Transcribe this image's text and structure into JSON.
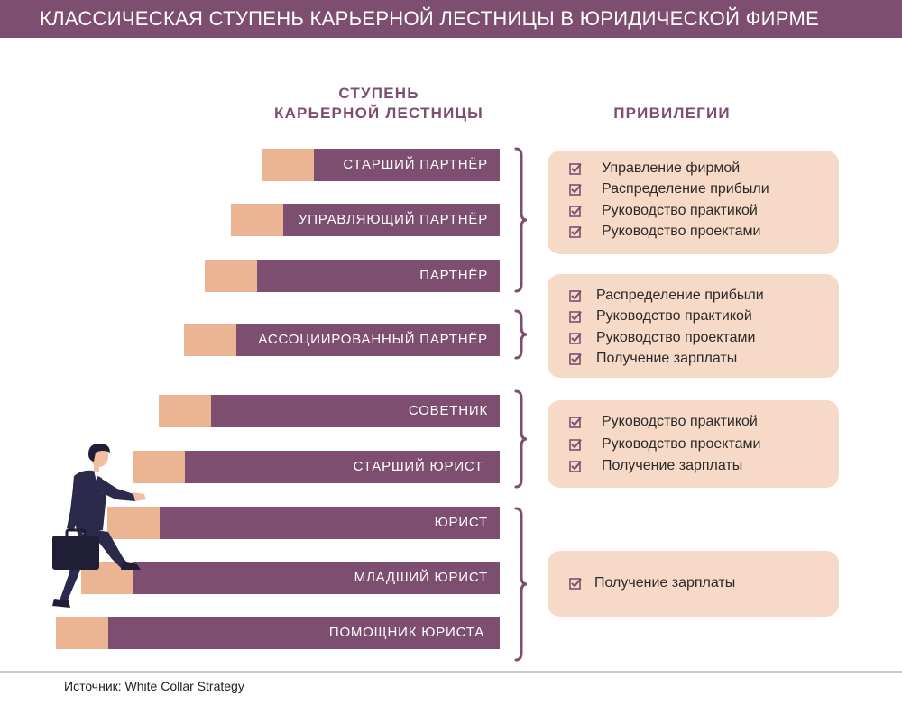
{
  "title": "КЛАССИЧЕСКАЯ СТУПЕНЬ КАРЬЕРНОЙ ЛЕСТНИЦЫ В ЮРИДИЧЕСКОЙ ФИРМЕ",
  "headers": {
    "steps_line1": "СТУПЕНЬ",
    "steps_line2": "КАРЬЕРНОЙ ЛЕСТНИЦЫ",
    "perks": "ПРИВИЛЕГИИ"
  },
  "steps": [
    "СТАРШИЙ ПАРТНЁР",
    "УПРАВЛЯЮЩИЙ ПАРТНЁР",
    "ПАРТНЁР",
    "АССОЦИИРОВАННЫЙ ПАРТНЁР",
    "СОВЕТНИК",
    "СТАРШИЙ ЮРИСТ",
    "ЮРИСТ",
    "МЛАДШИЙ ЮРИСТ",
    "ПОМОЩНИК ЮРИСТА"
  ],
  "perk_groups": [
    [
      "Управление фирмой",
      "Распределение прибыли",
      "Руководство практикой",
      "Руководство проектами"
    ],
    [
      "Распределение прибыли",
      "Руководство практикой",
      "Руководство проектами",
      "Получение зарплаты"
    ],
    [
      "Руководство практикой",
      "Руководство проектами",
      "Получение зарплаты"
    ],
    [
      "Получение зарплаты"
    ]
  ],
  "source": "Источник: White Collar Strategy",
  "colors": {
    "plum": "#7e4e70",
    "peach": "#ebb493",
    "perk_bg": "#f7d9c7",
    "navy": "#2b2a4c"
  },
  "icons": {
    "checkbox": "checkbox-checked-icon",
    "person": "businessman-climbing-icon",
    "briefcase": "briefcase-icon"
  }
}
